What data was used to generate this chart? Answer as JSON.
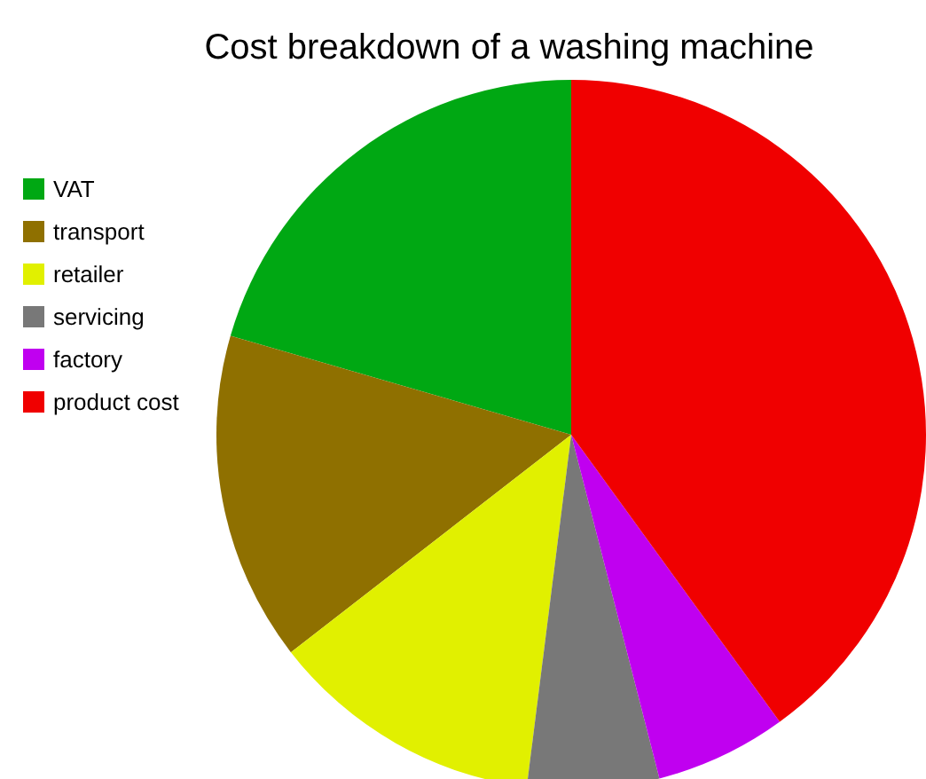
{
  "chart_data": {
    "type": "pie",
    "title": "Cost breakdown of a washing machine",
    "categories": [
      "VAT",
      "transport",
      "retailer",
      "servicing",
      "factory",
      "product cost"
    ],
    "values": [
      20.5,
      15,
      12.5,
      6,
      6,
      40
    ],
    "colors": [
      "#00a813",
      "#8f7000",
      "#e1f000",
      "#787878",
      "#c000f0",
      "#f00000"
    ],
    "legend": "left"
  }
}
